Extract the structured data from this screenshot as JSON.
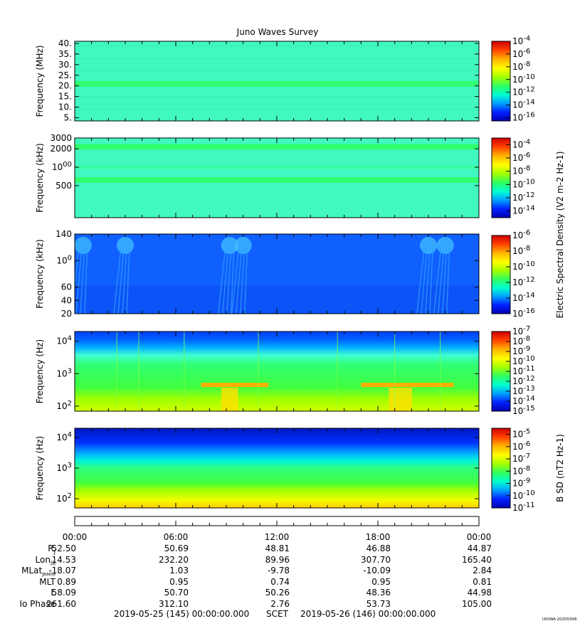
{
  "title": "Juno Waves Survey",
  "colors": {
    "colormap": [
      "#0000b0",
      "#0020ff",
      "#00a0ff",
      "#00ffd0",
      "#30ff60",
      "#a0ff00",
      "#ffff00",
      "#ffb000",
      "#ff4000",
      "#d00000"
    ]
  },
  "chart_data": [
    {
      "type": "heatmap",
      "panel": "HFR high band",
      "ylabel": "Frequency (MHz)",
      "yscale": "linear",
      "ylim": [
        3.5,
        41
      ],
      "yticks": [
        "40.",
        "35.",
        "30.",
        "25.",
        "20.",
        "15.",
        "10.",
        "5."
      ],
      "colorbar": {
        "scale": "log",
        "range": [
          -16.5,
          -4
        ],
        "ticks": [
          "10-4",
          "10-6",
          "10-8",
          "10-10",
          "10-12",
          "10-14",
          "10-16"
        ]
      },
      "features": [
        {
          "description_level": -12.0,
          "y_range": [
            3.5,
            41
          ]
        },
        {
          "band_center": 21.0,
          "level": -11.0
        }
      ]
    },
    {
      "type": "heatmap",
      "panel": "HFR low band",
      "ylabel": "Frequency (kHz)",
      "yscale": "log",
      "ylim": [
        150,
        3000
      ],
      "yticks": [
        "3000",
        "2000",
        "1000",
        "500"
      ],
      "colorbar": {
        "scale": "log",
        "range": [
          -15,
          -3
        ],
        "label": "Electric Spectral Density (V2 m-2 Hz-1)",
        "ticks": [
          "10-4",
          "10-6",
          "10-8",
          "10-10",
          "10-12",
          "10-14"
        ]
      },
      "features": [
        {
          "band_center": 2150,
          "level": -10.5
        },
        {
          "band_center": 620,
          "level": -10.0
        },
        {
          "band_center": 1000,
          "level": -11.0
        }
      ]
    },
    {
      "type": "heatmap",
      "panel": "LFR",
      "ylabel": "Frequency (kHz)",
      "yscale": "linear",
      "ylim": [
        20,
        140
      ],
      "yticks": [
        "140",
        "100",
        "60",
        "40",
        "20"
      ],
      "colorbar": {
        "scale": "log",
        "range": [
          -16,
          -6
        ],
        "ticks": [
          "10-6",
          "10-8",
          "10-10",
          "10-12",
          "10-14",
          "10-16"
        ]
      },
      "features": [
        {
          "background_level": -14.5
        },
        {
          "bursts_hours": [
            0.5,
            3.0,
            9.2,
            10.0,
            21.0,
            22.0
          ]
        }
      ]
    },
    {
      "type": "heatmap",
      "panel": "Electric low-frequency",
      "ylabel": "Frequency (Hz)",
      "yscale": "log",
      "ylim": [
        70,
        20000
      ],
      "yticks": [
        "10^4",
        "10^3",
        "10^2"
      ],
      "colorbar": {
        "scale": "log",
        "range": [
          -15,
          -7
        ],
        "ticks": [
          "10-7",
          "10-8",
          "10-9",
          "10-10",
          "10-11",
          "10-12",
          "10-13",
          "10-14",
          "10-15"
        ]
      },
      "features": [
        {
          "emission_band_hz": 450,
          "hours": [
            7.5,
            11.5
          ],
          "level": -9
        },
        {
          "emission_band_hz": 450,
          "hours": [
            17.0,
            22.5
          ],
          "level": -9
        }
      ]
    },
    {
      "type": "heatmap",
      "panel": "Magnetic",
      "ylabel": "Frequency (Hz)",
      "yscale": "log",
      "ylim": [
        50,
        20000
      ],
      "yticks": [
        "10^4",
        "10^3",
        "10^2"
      ],
      "colorbar": {
        "scale": "log",
        "range": [
          -11,
          -4.5
        ],
        "label": "B SD (nT2 Hz-1)",
        "ticks": [
          "10-5",
          "10-6",
          "10-7",
          "10-8",
          "10-9",
          "10-10",
          "10-11"
        ]
      }
    }
  ],
  "time_axis": {
    "ticks": [
      "00:00",
      "06:00",
      "12:00",
      "18:00",
      "00:00"
    ],
    "tick_hours": [
      0,
      6,
      12,
      18,
      24
    ]
  },
  "ephemeris": {
    "labels": [
      "R",
      "Lon",
      "MLat",
      "MLT",
      "L",
      "Io Phase"
    ],
    "label_subs": [
      "J",
      "III",
      "JRM09",
      "",
      "",
      ""
    ],
    "rows": [
      [
        "52.50",
        "50.69",
        "48.81",
        "46.88",
        "44.87"
      ],
      [
        "14.53",
        "232.20",
        "89.96",
        "307.70",
        "165.40"
      ],
      [
        "-18.07",
        "1.03",
        "-9.78",
        "-10.09",
        "2.84"
      ],
      [
        "0.89",
        "0.95",
        "0.74",
        "0.95",
        "0.81"
      ],
      [
        "58.09",
        "50.70",
        "50.26",
        "48.36",
        "44.98"
      ],
      [
        "261.60",
        "312.10",
        "2.76",
        "53.73",
        "105.00"
      ]
    ]
  },
  "footer": {
    "start": "2019-05-25 (145) 00:00:00.000",
    "scet": "SCET",
    "end": "2019-05-26 (146) 00:00:00.000",
    "watermark": "UIOWA 20200306"
  }
}
